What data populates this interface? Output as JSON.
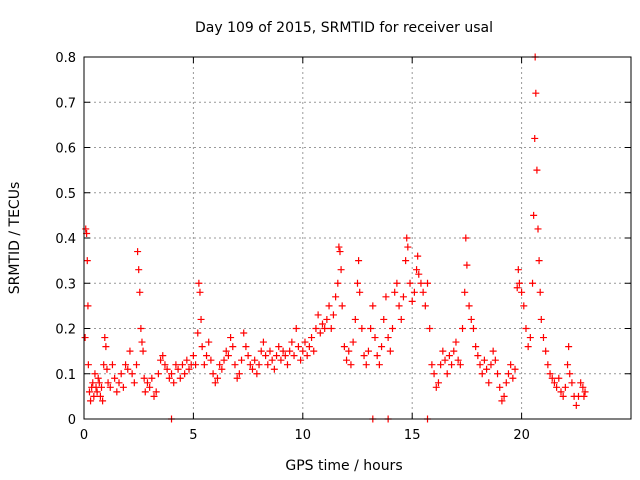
{
  "chart_data": {
    "type": "scatter",
    "title": "Day 109 of 2015, SRMTID for receiver usal",
    "xlabel": "GPS time / hours",
    "ylabel": "SRMTID / TECUs",
    "xlim": [
      0,
      25
    ],
    "ylim": [
      0,
      0.8
    ],
    "xticks": [
      0,
      5,
      10,
      15,
      20
    ],
    "xtick_labels": [
      "0",
      "5",
      "10",
      "15",
      "20"
    ],
    "yticks": [
      0,
      0.1,
      0.2,
      0.3,
      0.4,
      0.5,
      0.6,
      0.7,
      0.8
    ],
    "ytick_labels": [
      "0",
      "0.1",
      "0.2",
      "0.3",
      "0.4",
      "0.5",
      "0.6",
      "0.7",
      "0.8"
    ],
    "grid": true,
    "marker": "+",
    "color": "#ff0000",
    "series": [
      {
        "name": "SRMTID",
        "points": [
          [
            0.05,
            0.18
          ],
          [
            0.08,
            0.42
          ],
          [
            0.12,
            0.41
          ],
          [
            0.15,
            0.35
          ],
          [
            0.18,
            0.25
          ],
          [
            0.2,
            0.12
          ],
          [
            0.25,
            0.06
          ],
          [
            0.3,
            0.04
          ],
          [
            0.35,
            0.07
          ],
          [
            0.4,
            0.08
          ],
          [
            0.45,
            0.05
          ],
          [
            0.5,
            0.1
          ],
          [
            0.55,
            0.07
          ],
          [
            0.6,
            0.06
          ],
          [
            0.65,
            0.09
          ],
          [
            0.7,
            0.08
          ],
          [
            0.75,
            0.05
          ],
          [
            0.8,
            0.07
          ],
          [
            0.85,
            0.04
          ],
          [
            0.9,
            0.12
          ],
          [
            0.95,
            0.18
          ],
          [
            1.0,
            0.16
          ],
          [
            1.05,
            0.11
          ],
          [
            1.1,
            0.08
          ],
          [
            1.2,
            0.07
          ],
          [
            1.3,
            0.12
          ],
          [
            1.4,
            0.09
          ],
          [
            1.5,
            0.06
          ],
          [
            1.6,
            0.08
          ],
          [
            1.7,
            0.1
          ],
          [
            1.8,
            0.07
          ],
          [
            1.9,
            0.12
          ],
          [
            2.0,
            0.11
          ],
          [
            2.1,
            0.15
          ],
          [
            2.2,
            0.1
          ],
          [
            2.3,
            0.08
          ],
          [
            2.4,
            0.12
          ],
          [
            2.45,
            0.37
          ],
          [
            2.5,
            0.33
          ],
          [
            2.55,
            0.28
          ],
          [
            2.6,
            0.2
          ],
          [
            2.65,
            0.17
          ],
          [
            2.7,
            0.15
          ],
          [
            2.75,
            0.09
          ],
          [
            2.8,
            0.06
          ],
          [
            2.9,
            0.08
          ],
          [
            3.0,
            0.07
          ],
          [
            3.1,
            0.09
          ],
          [
            3.2,
            0.05
          ],
          [
            3.3,
            0.06
          ],
          [
            3.4,
            0.1
          ],
          [
            3.5,
            0.13
          ],
          [
            3.6,
            0.14
          ],
          [
            3.7,
            0.12
          ],
          [
            3.8,
            0.11
          ],
          [
            3.9,
            0.09
          ],
          [
            4.0,
            0.1
          ],
          [
            4.1,
            0.08
          ],
          [
            4.2,
            0.12
          ],
          [
            4.3,
            0.11
          ],
          [
            4.4,
            0.09
          ],
          [
            4.5,
            0.12
          ],
          [
            4.6,
            0.1
          ],
          [
            4.7,
            0.13
          ],
          [
            4.8,
            0.11
          ],
          [
            4.9,
            0.12
          ],
          [
            5.0,
            0.14
          ],
          [
            5.1,
            0.12
          ],
          [
            5.2,
            0.19
          ],
          [
            5.25,
            0.3
          ],
          [
            5.3,
            0.28
          ],
          [
            5.35,
            0.22
          ],
          [
            5.4,
            0.16
          ],
          [
            5.5,
            0.12
          ],
          [
            5.6,
            0.14
          ],
          [
            5.7,
            0.17
          ],
          [
            5.8,
            0.13
          ],
          [
            5.9,
            0.1
          ],
          [
            6.0,
            0.08
          ],
          [
            6.1,
            0.09
          ],
          [
            6.2,
            0.12
          ],
          [
            6.3,
            0.11
          ],
          [
            6.4,
            0.13
          ],
          [
            6.5,
            0.15
          ],
          [
            6.6,
            0.14
          ],
          [
            6.7,
            0.18
          ],
          [
            6.8,
            0.16
          ],
          [
            6.9,
            0.12
          ],
          [
            7.0,
            0.09
          ],
          [
            7.1,
            0.1
          ],
          [
            7.2,
            0.13
          ],
          [
            7.3,
            0.19
          ],
          [
            7.4,
            0.16
          ],
          [
            7.5,
            0.14
          ],
          [
            7.6,
            0.12
          ],
          [
            7.7,
            0.11
          ],
          [
            7.8,
            0.13
          ],
          [
            7.9,
            0.1
          ],
          [
            8.0,
            0.12
          ],
          [
            8.1,
            0.15
          ],
          [
            8.2,
            0.17
          ],
          [
            8.3,
            0.14
          ],
          [
            8.4,
            0.12
          ],
          [
            8.5,
            0.15
          ],
          [
            8.6,
            0.13
          ],
          [
            8.7,
            0.11
          ],
          [
            8.8,
            0.14
          ],
          [
            8.9,
            0.16
          ],
          [
            9.0,
            0.13
          ],
          [
            9.1,
            0.15
          ],
          [
            9.2,
            0.14
          ],
          [
            9.3,
            0.12
          ],
          [
            9.4,
            0.15
          ],
          [
            9.5,
            0.17
          ],
          [
            9.6,
            0.14
          ],
          [
            9.7,
            0.2
          ],
          [
            9.8,
            0.16
          ],
          [
            9.9,
            0.13
          ],
          [
            10.0,
            0.15
          ],
          [
            10.1,
            0.17
          ],
          [
            10.2,
            0.14
          ],
          [
            10.3,
            0.16
          ],
          [
            10.4,
            0.18
          ],
          [
            10.5,
            0.15
          ],
          [
            10.6,
            0.2
          ],
          [
            10.7,
            0.23
          ],
          [
            10.8,
            0.19
          ],
          [
            10.9,
            0.21
          ],
          [
            11.0,
            0.2
          ],
          [
            11.1,
            0.22
          ],
          [
            11.2,
            0.25
          ],
          [
            11.3,
            0.2
          ],
          [
            11.4,
            0.23
          ],
          [
            11.5,
            0.27
          ],
          [
            11.6,
            0.3
          ],
          [
            11.65,
            0.38
          ],
          [
            11.7,
            0.37
          ],
          [
            11.75,
            0.33
          ],
          [
            11.8,
            0.25
          ],
          [
            11.9,
            0.16
          ],
          [
            12.0,
            0.13
          ],
          [
            12.1,
            0.15
          ],
          [
            12.2,
            0.12
          ],
          [
            12.3,
            0.17
          ],
          [
            12.4,
            0.22
          ],
          [
            12.5,
            0.3
          ],
          [
            12.55,
            0.35
          ],
          [
            12.6,
            0.28
          ],
          [
            12.7,
            0.2
          ],
          [
            12.8,
            0.14
          ],
          [
            12.9,
            0.12
          ],
          [
            13.0,
            0.15
          ],
          [
            13.1,
            0.2
          ],
          [
            13.2,
            0.25
          ],
          [
            13.3,
            0.18
          ],
          [
            13.4,
            0.14
          ],
          [
            13.5,
            0.12
          ],
          [
            13.6,
            0.16
          ],
          [
            13.7,
            0.22
          ],
          [
            13.8,
            0.27
          ],
          [
            13.9,
            0.18
          ],
          [
            14.0,
            0.15
          ],
          [
            14.1,
            0.2
          ],
          [
            14.2,
            0.28
          ],
          [
            14.3,
            0.3
          ],
          [
            14.4,
            0.25
          ],
          [
            14.5,
            0.22
          ],
          [
            14.6,
            0.27
          ],
          [
            14.7,
            0.35
          ],
          [
            14.75,
            0.4
          ],
          [
            14.8,
            0.38
          ],
          [
            14.9,
            0.3
          ],
          [
            15.0,
            0.26
          ],
          [
            15.1,
            0.28
          ],
          [
            15.2,
            0.33
          ],
          [
            15.25,
            0.36
          ],
          [
            15.3,
            0.32
          ],
          [
            15.4,
            0.3
          ],
          [
            15.5,
            0.28
          ],
          [
            15.6,
            0.25
          ],
          [
            15.7,
            0.3
          ],
          [
            15.8,
            0.2
          ],
          [
            15.9,
            0.12
          ],
          [
            16.0,
            0.1
          ],
          [
            16.1,
            0.07
          ],
          [
            16.2,
            0.08
          ],
          [
            16.3,
            0.12
          ],
          [
            16.4,
            0.15
          ],
          [
            16.5,
            0.13
          ],
          [
            16.6,
            0.1
          ],
          [
            16.7,
            0.14
          ],
          [
            16.8,
            0.12
          ],
          [
            16.9,
            0.15
          ],
          [
            17.0,
            0.17
          ],
          [
            17.1,
            0.13
          ],
          [
            17.2,
            0.12
          ],
          [
            17.3,
            0.2
          ],
          [
            17.4,
            0.28
          ],
          [
            17.45,
            0.4
          ],
          [
            17.5,
            0.34
          ],
          [
            17.6,
            0.25
          ],
          [
            17.7,
            0.22
          ],
          [
            17.8,
            0.2
          ],
          [
            17.9,
            0.16
          ],
          [
            18.0,
            0.14
          ],
          [
            18.1,
            0.12
          ],
          [
            18.2,
            0.1
          ],
          [
            18.3,
            0.13
          ],
          [
            18.4,
            0.11
          ],
          [
            18.5,
            0.08
          ],
          [
            18.6,
            0.12
          ],
          [
            18.7,
            0.15
          ],
          [
            18.8,
            0.13
          ],
          [
            18.9,
            0.1
          ],
          [
            19.0,
            0.07
          ],
          [
            19.1,
            0.04
          ],
          [
            19.2,
            0.05
          ],
          [
            19.3,
            0.08
          ],
          [
            19.4,
            0.1
          ],
          [
            19.5,
            0.12
          ],
          [
            19.6,
            0.09
          ],
          [
            19.7,
            0.11
          ],
          [
            19.8,
            0.29
          ],
          [
            19.85,
            0.33
          ],
          [
            19.9,
            0.3
          ],
          [
            20.0,
            0.28
          ],
          [
            20.1,
            0.25
          ],
          [
            20.2,
            0.2
          ],
          [
            20.3,
            0.16
          ],
          [
            20.4,
            0.18
          ],
          [
            20.5,
            0.3
          ],
          [
            20.55,
            0.45
          ],
          [
            20.6,
            0.62
          ],
          [
            20.62,
            0.8
          ],
          [
            20.65,
            0.72
          ],
          [
            20.7,
            0.55
          ],
          [
            20.75,
            0.42
          ],
          [
            20.8,
            0.35
          ],
          [
            20.85,
            0.28
          ],
          [
            20.9,
            0.22
          ],
          [
            21.0,
            0.18
          ],
          [
            21.1,
            0.15
          ],
          [
            21.2,
            0.12
          ],
          [
            21.3,
            0.1
          ],
          [
            21.4,
            0.09
          ],
          [
            21.5,
            0.08
          ],
          [
            21.6,
            0.07
          ],
          [
            21.7,
            0.09
          ],
          [
            21.8,
            0.06
          ],
          [
            21.9,
            0.05
          ],
          [
            22.0,
            0.07
          ],
          [
            22.1,
            0.12
          ],
          [
            22.15,
            0.16
          ],
          [
            22.2,
            0.1
          ],
          [
            22.3,
            0.08
          ],
          [
            22.4,
            0.05
          ],
          [
            22.5,
            0.03
          ],
          [
            22.6,
            0.05
          ],
          [
            22.7,
            0.08
          ],
          [
            22.8,
            0.07
          ],
          [
            22.85,
            0.05
          ],
          [
            22.9,
            0.06
          ],
          [
            4.0,
            0.0
          ],
          [
            13.2,
            0.0
          ],
          [
            13.9,
            0.0
          ],
          [
            15.7,
            0.0
          ]
        ]
      }
    ]
  }
}
